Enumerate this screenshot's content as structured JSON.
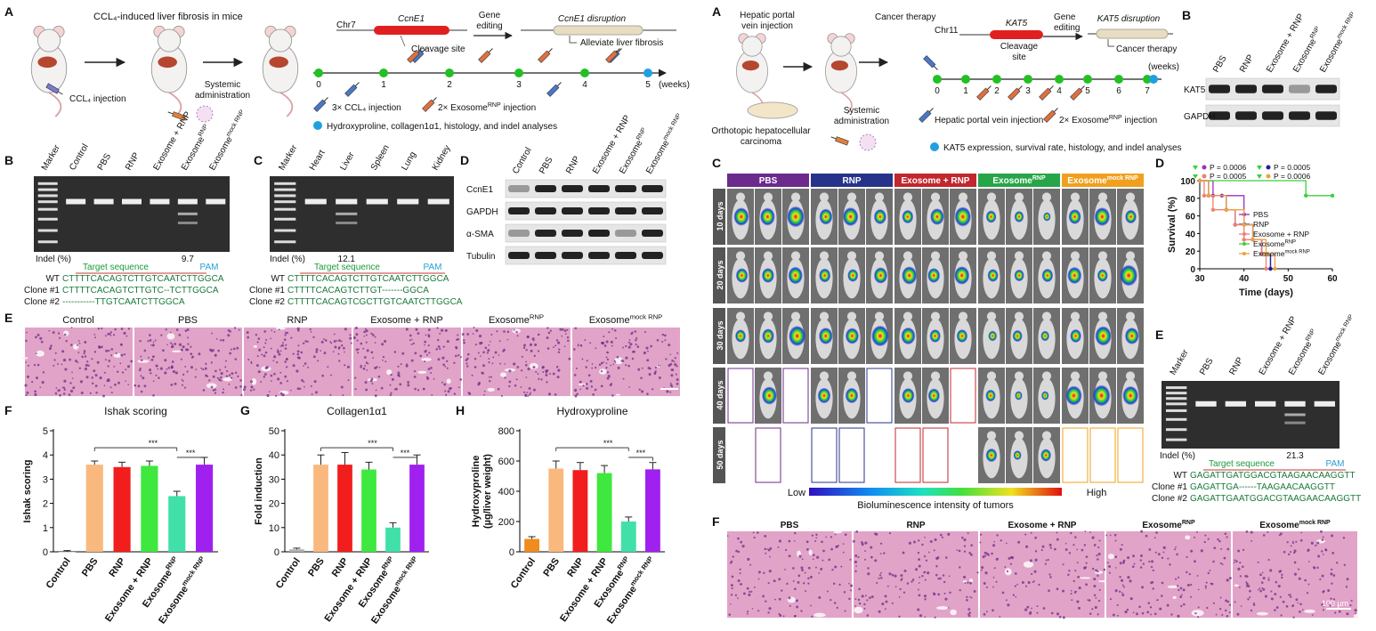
{
  "left": {
    "panel_labels": {
      "a": "A",
      "b": "B",
      "c": "C",
      "d": "D",
      "e": "E",
      "f": "F",
      "g": "G",
      "h": "H"
    },
    "a": {
      "title": "CCL₄-induced liver fibrosis in mice",
      "injection": "CCL₄ injection",
      "systemic": [
        "Systemic",
        "administration"
      ],
      "chromosome": "Chr7",
      "gene": "CcnE1",
      "cleavage": "Cleavage site",
      "gene_editing": [
        "Gene",
        "editing"
      ],
      "disruption": "CcnE1 disruption",
      "outcome": "Alleviate liver fibrosis",
      "timeline": [
        0,
        1,
        2,
        3,
        4,
        5
      ],
      "timeline_unit": "(weeks)",
      "legend": [
        "3× CCL₄ injection",
        {
          "base": "2× Exosome",
          "sup": "RNP",
          "after": " injection"
        },
        "Hydroxyproline, collagen1α1, histology, and indel analyses"
      ]
    },
    "b": {
      "lanes": [
        "Marker",
        "Control",
        "PBS",
        "RNP",
        "Exosome + RNP",
        {
          "base": "Exosome",
          "sup": "RNP"
        },
        {
          "base": "Exosome",
          "sup": "mock RNP"
        }
      ],
      "indel_label": "Indel (%)",
      "indel": 9.7,
      "target": "Target sequence",
      "pam": "PAM",
      "sequences": [
        [
          "WT",
          "CTTTTCACAGTCTTGTCAATCTTGGCA"
        ],
        [
          "Clone #1",
          "CTTTTCACAGTCTTGTC--TCTTGGCA"
        ],
        [
          "Clone #2",
          "-----------TTGTCAATCTTGGCA"
        ]
      ]
    },
    "c": {
      "lanes": [
        "Marker",
        "Heart",
        "Liver",
        "Spleen",
        "Lung",
        "Kidney"
      ],
      "indel_label": "Indel (%)",
      "indel": 12.1,
      "target": "Target sequence",
      "pam": "PAM",
      "sequences": [
        [
          "WT",
          "CTTTTCACAGTCTTGTCAATCTTGGCA"
        ],
        [
          "Clone #1",
          "CTTTTCACAGTCTTGT-------GGCA"
        ],
        [
          "Clone #2",
          "CTTTTCACAGTCGCTTGTCAATCTTGGCA"
        ]
      ]
    },
    "d": {
      "lanes": [
        "Control",
        "PBS",
        "RNP",
        "Exosome + RNP",
        {
          "base": "Exosome",
          "sup": "RNP"
        },
        {
          "base": "Exosome",
          "sup": "mock RNP"
        }
      ],
      "rows": [
        "CcnE1",
        "GAPDH",
        "α-SMA",
        "Tubulin"
      ]
    },
    "e": {
      "groups": [
        "Control",
        "PBS",
        "RNP",
        "Exosome + RNP",
        {
          "base": "Exosome",
          "sup": "RNP"
        },
        {
          "base": "Exosome",
          "sup": "mock RNP"
        }
      ]
    }
  },
  "right": {
    "panel_labels": {
      "a": "A",
      "b": "B",
      "c": "C",
      "d": "D",
      "e": "E",
      "f": "F"
    },
    "a": {
      "injection": [
        "Hepatic portal",
        "vein injection"
      ],
      "model": [
        "Orthotopic hepatocellular",
        "carcinoma"
      ],
      "systemic": [
        "Systemic",
        "administration"
      ],
      "therapy": "Cancer therapy",
      "chromosome": "Chr11",
      "gene": "KAT5",
      "cleavage": [
        "Cleavage",
        "site"
      ],
      "gene_editing": [
        "Gene",
        "editing"
      ],
      "disruption": "KAT5 disruption",
      "outcome": "Cancer therapy",
      "timeline": [
        0,
        1,
        2,
        3,
        4,
        5,
        6,
        7
      ],
      "timeline_unit": "(weeks)",
      "legend": [
        "Hepatic portal vein injection",
        {
          "base": "2× Exosome",
          "sup": "RNP",
          "after": " injection"
        },
        "KAT5 expression, survival rate, histology, and indel analyses"
      ]
    },
    "b": {
      "lanes": [
        "PBS",
        "RNP",
        "Exosome + RNP",
        {
          "base": "Exosome",
          "sup": "RNP"
        },
        {
          "base": "Exosome",
          "sup": "mock RNP"
        }
      ],
      "rows": [
        "KAT5",
        "GAPDH"
      ]
    },
    "c": {
      "groups": [
        "PBS",
        "RNP",
        "Exosome + RNP",
        {
          "base": "Exosome",
          "sup": "RNP"
        },
        {
          "base": "Exosome",
          "sup": "mock RNP"
        }
      ],
      "rows": [
        "10 days",
        "20 days",
        "30 days",
        "40 days",
        "50 days"
      ],
      "low": "Low",
      "high": "High",
      "colorbar_title": "Bioluminescence intensity of tumors"
    },
    "e": {
      "lanes": [
        "Marker",
        "PBS",
        "RNP",
        "Exosome + RNP",
        {
          "base": "Exosome",
          "sup": "RNP"
        },
        {
          "base": "Exosome",
          "sup": "mock RNP"
        }
      ],
      "indel_label": "Indel (%)",
      "indel": 21.3,
      "target": "Target sequence",
      "pam": "PAM",
      "sequences": [
        [
          "WT",
          "GAGATTGATGGACGTAAGAACAAGGTT"
        ],
        [
          "Clone #1",
          "GAGATTGA------TAAGAACAAGGTT"
        ],
        [
          "Clone #2",
          "GAGATTGAATGGACGTAAGAACAAGGTT"
        ]
      ]
    },
    "f": {
      "groups": [
        "PBS",
        "RNP",
        "Exosome + RNP",
        {
          "base": "Exosome",
          "sup": "RNP"
        },
        {
          "base": "Exosome",
          "sup": "mock RNP"
        }
      ],
      "scale": "100 µm"
    }
  },
  "chart_data": [
    {
      "type": "bar",
      "title": "Ishak scoring",
      "ylabel": "Ishak scoring",
      "categories": [
        "Control",
        "PBS",
        "RNP",
        "Exosome + RNP",
        {
          "base": "Exosome",
          "sup": "RNP"
        },
        {
          "base": "Exosome",
          "sup": "mock RNP"
        }
      ],
      "values": [
        0,
        3.6,
        3.5,
        3.55,
        2.3,
        3.6
      ],
      "errors": [
        0.05,
        0.15,
        0.2,
        0.2,
        0.2,
        0.3
      ],
      "colors": [
        "#b0b0b0",
        "#f9b97e",
        "#f21d1d",
        "#3ee83e",
        "#40e0a8",
        "#a020f0"
      ],
      "ylim": [
        0,
        5
      ],
      "yticks": [
        0,
        1,
        2,
        3,
        4,
        5
      ],
      "annotations": [
        "***",
        "***"
      ]
    },
    {
      "type": "bar",
      "title": "Collagen1α1",
      "ylabel": "Fold induction",
      "categories": [
        "Control",
        "PBS",
        "RNP",
        "Exosome + RNP",
        {
          "base": "Exosome",
          "sup": "RNP"
        },
        {
          "base": "Exosome",
          "sup": "mock RNP"
        }
      ],
      "values": [
        1,
        36,
        36,
        34,
        10,
        36
      ],
      "errors": [
        0.5,
        4,
        5,
        3,
        2,
        4
      ],
      "colors": [
        "#b0b0b0",
        "#f9b97e",
        "#f21d1d",
        "#3ee83e",
        "#40e0a8",
        "#a020f0"
      ],
      "ylim": [
        0,
        50
      ],
      "yticks": [
        0,
        10,
        20,
        30,
        40,
        50
      ],
      "annotations": [
        "***",
        "***"
      ]
    },
    {
      "type": "bar",
      "title": "Hydroxyproline",
      "ylabel": [
        "Hydroxyproline",
        "(µg/liver weight)"
      ],
      "categories": [
        "Control",
        "PBS",
        "RNP",
        "Exosome + RNP",
        {
          "base": "Exosome",
          "sup": "RNP"
        },
        {
          "base": "Exosome",
          "sup": "mock RNP"
        }
      ],
      "values": [
        85,
        550,
        540,
        520,
        200,
        545
      ],
      "errors": [
        15,
        50,
        50,
        50,
        30,
        45
      ],
      "colors": [
        "#f08c1e",
        "#f9b97e",
        "#f21d1d",
        "#3ee83e",
        "#40e0a8",
        "#a020f0"
      ],
      "ylim": [
        0,
        800
      ],
      "yticks": [
        0,
        200,
        400,
        600,
        800
      ],
      "annotations": [
        "***",
        "***"
      ]
    },
    {
      "type": "line",
      "xlabel": "Time (days)",
      "ylabel": "Survival (%)",
      "xlim": [
        30,
        60
      ],
      "xticks": [
        30,
        40,
        50,
        60
      ],
      "ylim": [
        0,
        100
      ],
      "yticks": [
        0,
        20,
        40,
        60,
        80,
        100
      ],
      "annotations": [
        "P = 0.0006",
        "P = 0.0005",
        "P = 0.0005",
        "P = 0.0006"
      ],
      "series": [
        {
          "name": "PBS",
          "color": "#9b30c0",
          "x": [
            30,
            33,
            35,
            40,
            42,
            44,
            46
          ],
          "values": [
            100,
            83,
            83,
            50,
            33,
            17,
            0
          ]
        },
        {
          "name": "RNP",
          "color": "#1f1fa0",
          "x": [
            30,
            32,
            36,
            38,
            42,
            44,
            46
          ],
          "values": [
            100,
            83,
            67,
            50,
            33,
            17,
            0
          ]
        },
        {
          "name": "Exosome + RNP",
          "color": "#f08070",
          "x": [
            30,
            31,
            33,
            38,
            40,
            44,
            45
          ],
          "values": [
            100,
            83,
            67,
            50,
            33,
            17,
            0
          ]
        },
        {
          "name": {
            "base": "Exosome",
            "sup": "RNP"
          },
          "color": "#3ecf3e",
          "x": [
            30,
            54,
            60
          ],
          "values": [
            100,
            83,
            83
          ]
        },
        {
          "name": {
            "base": "Exosome",
            "sup": "mock RNP"
          },
          "color": "#f0a040",
          "x": [
            30,
            32,
            36,
            40,
            42,
            45,
            47
          ],
          "values": [
            100,
            83,
            67,
            50,
            33,
            17,
            0
          ]
        }
      ]
    }
  ]
}
